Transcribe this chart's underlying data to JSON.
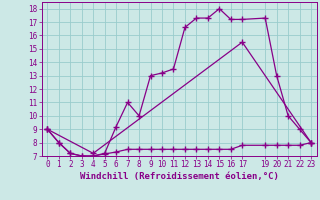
{
  "xlabel": "Windchill (Refroidissement éolien,°C)",
  "background_color": "#cce8e6",
  "line_color": "#880088",
  "grid_color": "#99cccc",
  "xlim": [
    -0.5,
    23.5
  ],
  "ylim": [
    7,
    18.5
  ],
  "xticks": [
    0,
    1,
    2,
    3,
    4,
    5,
    6,
    7,
    8,
    9,
    10,
    11,
    12,
    13,
    14,
    15,
    16,
    17,
    19,
    20,
    21,
    22,
    23
  ],
  "yticks": [
    7,
    8,
    9,
    10,
    11,
    12,
    13,
    14,
    15,
    16,
    17,
    18
  ],
  "series1_x": [
    0,
    1,
    2,
    3,
    4,
    5,
    6,
    7,
    8,
    9,
    10,
    11,
    12,
    13,
    14,
    15,
    16,
    17,
    19,
    20,
    21,
    22,
    23
  ],
  "series1_y": [
    9.0,
    8.0,
    7.2,
    7.0,
    7.0,
    7.15,
    7.3,
    7.5,
    7.5,
    7.5,
    7.5,
    7.5,
    7.5,
    7.5,
    7.5,
    7.5,
    7.5,
    7.8,
    7.8,
    7.8,
    7.8,
    7.8,
    8.0
  ],
  "series2_x": [
    0,
    1,
    2,
    3,
    4,
    5,
    6,
    7,
    8,
    9,
    10,
    11,
    12,
    13,
    14,
    15,
    16,
    17,
    19,
    20,
    21,
    22,
    23
  ],
  "series2_y": [
    9.0,
    8.0,
    7.2,
    7.0,
    7.0,
    7.2,
    9.2,
    11.0,
    10.0,
    13.0,
    13.2,
    13.5,
    16.6,
    17.3,
    17.3,
    18.0,
    17.2,
    17.2,
    17.3,
    13.0,
    10.0,
    9.0,
    8.0
  ],
  "series3_x": [
    0,
    4,
    17,
    23
  ],
  "series3_y": [
    9.0,
    7.2,
    15.5,
    8.0
  ],
  "marker": "+",
  "markersize": 4,
  "markeredgewidth": 1.0,
  "linewidth": 0.9,
  "tick_fontsize": 5.5,
  "label_fontsize": 6.5
}
